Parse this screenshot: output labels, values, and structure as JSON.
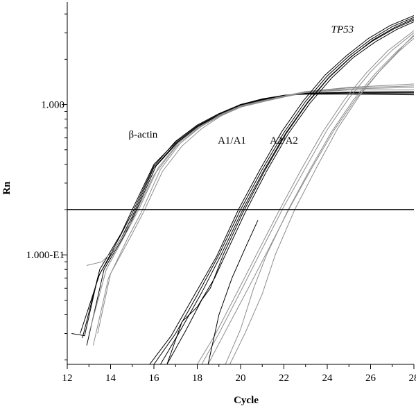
{
  "chart_data": {
    "type": "line",
    "title": "",
    "xlabel": "Cycle",
    "ylabel": "Rn",
    "y_scale": "log",
    "xlim": [
      12,
      28
    ],
    "ylim": [
      0.0187,
      4.8
    ],
    "grid": false,
    "legend": "none",
    "x_ticks": [
      12,
      14,
      16,
      18,
      20,
      22,
      24,
      26,
      28
    ],
    "x_tick_labels": [
      "12",
      "14",
      "16",
      "18",
      "20",
      "22",
      "24",
      "26",
      "28"
    ],
    "y_tick_labels": [
      {
        "value": 1.0,
        "label": "1.000"
      },
      {
        "value": 0.1,
        "label": "1.000-E1"
      }
    ],
    "threshold": 0.2,
    "annotations": [
      {
        "text": "β-actin",
        "x": 15.5,
        "y": 0.6
      },
      {
        "text": "A1/A1",
        "x": 19.6,
        "y": 0.55
      },
      {
        "text": "A2/A2",
        "x": 22.0,
        "y": 0.55
      },
      {
        "text": "TP53",
        "x": 24.7,
        "y": 3.0,
        "italic": true
      }
    ],
    "series": [
      {
        "group": "β-actin",
        "color": "#000000",
        "points": [
          [
            12.7,
            0.028
          ],
          [
            13.5,
            0.08
          ],
          [
            14.5,
            0.14
          ],
          [
            15.0,
            0.2
          ],
          [
            16.0,
            0.4
          ],
          [
            17.0,
            0.56
          ],
          [
            18.0,
            0.72
          ],
          [
            19.0,
            0.86
          ],
          [
            20.0,
            1.0
          ],
          [
            21.0,
            1.08
          ],
          [
            22.0,
            1.15
          ],
          [
            23.0,
            1.18
          ],
          [
            25.0,
            1.2
          ],
          [
            28.0,
            1.2
          ]
        ]
      },
      {
        "group": "β-actin",
        "color": "#000000",
        "points": [
          [
            12.6,
            0.03
          ],
          [
            13.5,
            0.075
          ],
          [
            14.5,
            0.13
          ],
          [
            15.0,
            0.18
          ],
          [
            16.0,
            0.38
          ],
          [
            17.0,
            0.55
          ],
          [
            18.0,
            0.71
          ],
          [
            19.0,
            0.85
          ],
          [
            20.0,
            0.99
          ],
          [
            21.0,
            1.07
          ],
          [
            22.0,
            1.14
          ],
          [
            23.0,
            1.18
          ],
          [
            25.0,
            1.19
          ],
          [
            28.0,
            1.18
          ]
        ]
      },
      {
        "group": "β-actin",
        "color": "#000000",
        "points": [
          [
            12.9,
            0.025
          ],
          [
            13.7,
            0.08
          ],
          [
            14.7,
            0.14
          ],
          [
            15.2,
            0.2
          ],
          [
            16.1,
            0.39
          ],
          [
            17.1,
            0.56
          ],
          [
            18.0,
            0.71
          ],
          [
            19.0,
            0.86
          ],
          [
            20.0,
            1.0
          ],
          [
            21.0,
            1.08
          ],
          [
            22.0,
            1.15
          ],
          [
            23.0,
            1.19
          ],
          [
            25.0,
            1.21
          ],
          [
            28.0,
            1.22
          ]
        ]
      },
      {
        "group": "β-actin",
        "color": "#000000",
        "points": [
          [
            12.2,
            0.03
          ],
          [
            12.8,
            0.029
          ],
          [
            13.4,
            0.07
          ],
          [
            14.4,
            0.13
          ],
          [
            15.0,
            0.19
          ],
          [
            16.0,
            0.39
          ],
          [
            17.0,
            0.57
          ],
          [
            18.0,
            0.73
          ],
          [
            19.0,
            0.87
          ],
          [
            20.0,
            1.0
          ],
          [
            21.0,
            1.09
          ],
          [
            22.0,
            1.15
          ],
          [
            23.0,
            1.17
          ],
          [
            25.0,
            1.17
          ],
          [
            28.0,
            1.16
          ]
        ]
      },
      {
        "group": "β-actin",
        "color": "#8c8c8c",
        "points": [
          [
            13.2,
            0.025
          ],
          [
            13.9,
            0.07
          ],
          [
            14.8,
            0.13
          ],
          [
            15.4,
            0.19
          ],
          [
            16.3,
            0.37
          ],
          [
            17.2,
            0.55
          ],
          [
            18.1,
            0.7
          ],
          [
            19.0,
            0.85
          ],
          [
            20.0,
            0.98
          ],
          [
            21.0,
            1.06
          ],
          [
            22.0,
            1.13
          ],
          [
            23.0,
            1.2
          ],
          [
            25.0,
            1.27
          ],
          [
            28.0,
            1.3
          ]
        ]
      },
      {
        "group": "β-actin",
        "color": "#8c8c8c",
        "points": [
          [
            13.0,
            0.03
          ],
          [
            13.8,
            0.08
          ],
          [
            14.6,
            0.13
          ],
          [
            15.3,
            0.2
          ],
          [
            16.2,
            0.38
          ],
          [
            17.1,
            0.55
          ],
          [
            18.0,
            0.7
          ],
          [
            19.0,
            0.84
          ],
          [
            20.0,
            0.97
          ],
          [
            21.0,
            1.06
          ],
          [
            22.0,
            1.14
          ],
          [
            23.0,
            1.22
          ],
          [
            25.0,
            1.3
          ],
          [
            28.0,
            1.37
          ]
        ]
      },
      {
        "group": "β-actin",
        "color": "#8c8c8c",
        "points": [
          [
            12.9,
            0.085
          ],
          [
            13.6,
            0.09
          ],
          [
            14.2,
            0.11
          ],
          [
            15.0,
            0.17
          ],
          [
            16.0,
            0.34
          ],
          [
            17.0,
            0.52
          ],
          [
            18.0,
            0.69
          ],
          [
            19.0,
            0.83
          ],
          [
            20.0,
            0.96
          ],
          [
            21.0,
            1.05
          ],
          [
            22.0,
            1.13
          ],
          [
            23.0,
            1.21
          ],
          [
            25.0,
            1.29
          ],
          [
            28.0,
            1.33
          ]
        ]
      },
      {
        "group": "β-actin",
        "color": "#8c8c8c",
        "points": [
          [
            13.4,
            0.03
          ],
          [
            14.0,
            0.075
          ],
          [
            14.9,
            0.13
          ],
          [
            15.5,
            0.19
          ],
          [
            16.4,
            0.36
          ],
          [
            17.3,
            0.53
          ],
          [
            18.2,
            0.69
          ],
          [
            19.1,
            0.84
          ],
          [
            20.0,
            0.96
          ],
          [
            21.0,
            1.04
          ],
          [
            22.0,
            1.12
          ],
          [
            23.0,
            1.2
          ],
          [
            25.0,
            1.25
          ],
          [
            28.0,
            1.25
          ]
        ]
      },
      {
        "group": "A1/A1",
        "color": "#000000",
        "points": [
          [
            16.0,
            0.0187
          ],
          [
            17.0,
            0.03
          ],
          [
            18.0,
            0.054
          ],
          [
            19.0,
            0.1
          ],
          [
            20.0,
            0.2
          ],
          [
            21.0,
            0.37
          ],
          [
            22.0,
            0.65
          ],
          [
            23.0,
            1.05
          ],
          [
            24.0,
            1.55
          ],
          [
            25.0,
            2.1
          ],
          [
            26.0,
            2.7
          ],
          [
            27.0,
            3.3
          ],
          [
            28.0,
            3.8
          ]
        ]
      },
      {
        "group": "A1/A1",
        "color": "#000000",
        "points": [
          [
            16.3,
            0.0187
          ],
          [
            17.2,
            0.031
          ],
          [
            18.2,
            0.056
          ],
          [
            19.1,
            0.1
          ],
          [
            20.1,
            0.2
          ],
          [
            21.1,
            0.37
          ],
          [
            22.1,
            0.65
          ],
          [
            23.1,
            1.04
          ],
          [
            24.1,
            1.53
          ],
          [
            25.1,
            2.08
          ],
          [
            26.1,
            2.65
          ],
          [
            27.1,
            3.2
          ],
          [
            28.0,
            3.65
          ]
        ]
      },
      {
        "group": "A1/A1",
        "color": "#000000",
        "points": [
          [
            15.8,
            0.0187
          ],
          [
            16.8,
            0.029
          ],
          [
            17.8,
            0.052
          ],
          [
            18.9,
            0.098
          ],
          [
            19.9,
            0.2
          ],
          [
            20.9,
            0.37
          ],
          [
            21.9,
            0.66
          ],
          [
            22.9,
            1.06
          ],
          [
            23.9,
            1.57
          ],
          [
            24.9,
            2.12
          ],
          [
            25.9,
            2.75
          ],
          [
            26.9,
            3.35
          ],
          [
            28.0,
            3.9
          ]
        ]
      },
      {
        "group": "A1/A1",
        "color": "#000000",
        "points": [
          [
            16.6,
            0.0187
          ],
          [
            17.3,
            0.036
          ],
          [
            18.0,
            0.045
          ],
          [
            18.8,
            0.07
          ],
          [
            19.3,
            0.1
          ],
          [
            20.2,
            0.19
          ],
          [
            21.2,
            0.36
          ],
          [
            22.2,
            0.64
          ],
          [
            23.2,
            1.02
          ],
          [
            24.2,
            1.5
          ],
          [
            25.2,
            2.05
          ],
          [
            26.2,
            2.6
          ],
          [
            27.2,
            3.15
          ],
          [
            28.0,
            3.55
          ]
        ]
      },
      {
        "group": "A1/A1",
        "color": "#000000",
        "points": [
          [
            16.6,
            0.0187
          ],
          [
            17.5,
            0.032
          ],
          [
            18.2,
            0.05
          ],
          [
            18.6,
            0.06
          ],
          [
            19.2,
            0.1
          ],
          [
            20.1,
            0.19
          ],
          [
            21.1,
            0.36
          ],
          [
            22.1,
            0.64
          ],
          [
            23.1,
            1.03
          ],
          [
            24.1,
            1.52
          ],
          [
            25.1,
            2.07
          ],
          [
            26.1,
            2.68
          ],
          [
            27.1,
            3.25
          ],
          [
            28.0,
            3.72
          ]
        ]
      },
      {
        "group": "A2/A2",
        "color": "#8c8c8c",
        "points": [
          [
            18.2,
            0.0187
          ],
          [
            19.0,
            0.03
          ],
          [
            20.0,
            0.057
          ],
          [
            21.0,
            0.11
          ],
          [
            22.0,
            0.21
          ],
          [
            23.0,
            0.38
          ],
          [
            24.0,
            0.68
          ],
          [
            25.0,
            1.1
          ],
          [
            26.0,
            1.65
          ],
          [
            27.0,
            2.3
          ],
          [
            28.0,
            3.0
          ]
        ]
      },
      {
        "group": "A2/A2",
        "color": "#8c8c8c",
        "points": [
          [
            18.5,
            0.0187
          ],
          [
            19.3,
            0.031
          ],
          [
            20.3,
            0.058
          ],
          [
            21.3,
            0.11
          ],
          [
            22.3,
            0.21
          ],
          [
            23.3,
            0.38
          ],
          [
            24.3,
            0.67
          ],
          [
            25.3,
            1.08
          ],
          [
            26.3,
            1.6
          ],
          [
            27.3,
            2.25
          ],
          [
            28.0,
            2.75
          ]
        ]
      },
      {
        "group": "A2/A2",
        "color": "#8c8c8c",
        "points": [
          [
            18.0,
            0.0187
          ],
          [
            18.8,
            0.029
          ],
          [
            19.8,
            0.055
          ],
          [
            20.8,
            0.105
          ],
          [
            21.8,
            0.2
          ],
          [
            22.8,
            0.37
          ],
          [
            23.8,
            0.66
          ],
          [
            24.8,
            1.08
          ],
          [
            25.8,
            1.62
          ],
          [
            26.8,
            2.28
          ],
          [
            28.0,
            3.1
          ]
        ]
      },
      {
        "group": "A2/A2",
        "color": "#8c8c8c",
        "points": [
          [
            19.3,
            0.0187
          ],
          [
            20.0,
            0.032
          ],
          [
            20.6,
            0.06
          ],
          [
            21.2,
            0.1
          ],
          [
            22.2,
            0.2
          ],
          [
            23.2,
            0.37
          ],
          [
            24.2,
            0.66
          ],
          [
            25.2,
            1.07
          ],
          [
            26.2,
            1.6
          ],
          [
            27.2,
            2.25
          ],
          [
            28.0,
            2.85
          ]
        ]
      },
      {
        "group": "A2/A2",
        "color": "#000000",
        "points": [
          [
            18.5,
            0.0187
          ],
          [
            19.0,
            0.04
          ],
          [
            19.6,
            0.07
          ],
          [
            20.2,
            0.11
          ],
          [
            20.8,
            0.17
          ]
        ]
      },
      {
        "group": "A2/A2",
        "color": "#8c8c8c",
        "points": [
          [
            19.5,
            0.0187
          ],
          [
            20.2,
            0.03
          ],
          [
            21.0,
            0.055
          ],
          [
            21.6,
            0.1
          ],
          [
            22.5,
            0.2
          ],
          [
            23.5,
            0.38
          ],
          [
            24.5,
            0.7
          ],
          [
            25.5,
            1.15
          ],
          [
            26.5,
            1.72
          ],
          [
            27.5,
            2.45
          ],
          [
            28.0,
            2.9
          ]
        ]
      }
    ]
  }
}
